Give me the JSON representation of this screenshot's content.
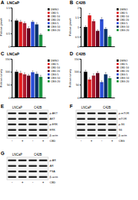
{
  "chart_data": [
    {
      "type": "bar",
      "panel": "A",
      "title": "LNCaP",
      "y_label": "Relative growth",
      "categories": [
        null
      ],
      "tick_labels": "y",
      "series": [
        {
          "name": "DMSO",
          "color": "#000000",
          "values": [
            1.0
          ],
          "errors": [
            0.05
          ]
        },
        {
          "name": "CBD 5",
          "color": "#e41a1c",
          "values": [
            0.95
          ],
          "errors": [
            0.06
          ]
        },
        {
          "name": "CBD 10",
          "color": "#b2182b",
          "values": [
            0.9
          ],
          "errors": [
            0.05
          ]
        },
        {
          "name": "CBD 20",
          "color": "#67001f",
          "values": [
            0.7
          ],
          "errors": [
            0.06
          ]
        },
        {
          "name": "CBG 5",
          "color": "#2c4fd8",
          "values": [
            0.95
          ],
          "errors": [
            0.05
          ]
        },
        {
          "name": "CBG 10",
          "color": "#08306b",
          "values": [
            0.85
          ],
          "errors": [
            0.06
          ]
        },
        {
          "name": "CBG 20",
          "color": "#1a9641",
          "values": [
            0.45
          ],
          "errors": [
            0.04
          ]
        }
      ],
      "ylim": [
        0,
        1.5
      ],
      "yticks": [
        0,
        0.5,
        1,
        1.5
      ]
    },
    {
      "type": "bar",
      "panel": "B",
      "title": "C42B",
      "y_label": "Relative growth",
      "categories": [
        null
      ],
      "tick_labels": "y",
      "series": [
        {
          "name": "DMSO",
          "color": "#000000",
          "values": [
            1.0
          ],
          "errors": [
            0.06
          ]
        },
        {
          "name": "CBD 5",
          "color": "#e41a1c",
          "values": [
            1.6
          ],
          "errors": [
            0.1
          ]
        },
        {
          "name": "CBD 10",
          "color": "#b2182b",
          "values": [
            1.3
          ],
          "errors": [
            0.08
          ]
        },
        {
          "name": "CBD 20",
          "color": "#67001f",
          "values": [
            0.8
          ],
          "errors": [
            0.06
          ]
        },
        {
          "name": "CBG 5",
          "color": "#2c4fd8",
          "values": [
            1.4
          ],
          "errors": [
            0.09
          ]
        },
        {
          "name": "CBG 10",
          "color": "#08306b",
          "values": [
            0.9
          ],
          "errors": [
            0.07
          ]
        },
        {
          "name": "CBG 20",
          "color": "#1a9641",
          "values": [
            0.5
          ],
          "errors": [
            0.05
          ]
        }
      ],
      "ylim": [
        0,
        2
      ],
      "yticks": [
        0,
        0.5,
        1,
        1.5,
        2
      ]
    },
    {
      "type": "bar",
      "panel": "C",
      "title": "LNCaP",
      "y_label": "Relative activity",
      "categories": [
        null
      ],
      "tick_labels": "y",
      "series": [
        {
          "name": "DMSO",
          "color": "#000000",
          "values": [
            100
          ],
          "errors": [
            6
          ]
        },
        {
          "name": "CBD 5",
          "color": "#e41a1c",
          "values": [
            95
          ],
          "errors": [
            7
          ]
        },
        {
          "name": "CBD 10",
          "color": "#b2182b",
          "values": [
            90
          ],
          "errors": [
            6
          ]
        },
        {
          "name": "CBD 20",
          "color": "#67001f",
          "values": [
            85
          ],
          "errors": [
            5
          ]
        },
        {
          "name": "CBG 5",
          "color": "#2c4fd8",
          "values": [
            98
          ],
          "errors": [
            6
          ]
        },
        {
          "name": "CBG 10",
          "color": "#08306b",
          "values": [
            92
          ],
          "errors": [
            7
          ]
        },
        {
          "name": "CBG 20",
          "color": "#1a9641",
          "values": [
            80
          ],
          "errors": [
            6
          ]
        }
      ],
      "ylim": [
        0,
        150
      ],
      "yticks": [
        0,
        50,
        100,
        150
      ]
    },
    {
      "type": "bar",
      "panel": "D",
      "title": "C42B",
      "y_label": "Relative activity",
      "categories": [
        null
      ],
      "tick_labels": "y",
      "series": [
        {
          "name": "DMSO",
          "color": "#000000",
          "values": [
            100
          ],
          "errors": [
            6
          ]
        },
        {
          "name": "CBD 5",
          "color": "#e41a1c",
          "values": [
            70
          ],
          "errors": [
            6
          ]
        },
        {
          "name": "CBD 10",
          "color": "#b2182b",
          "values": [
            85
          ],
          "errors": [
            7
          ]
        },
        {
          "name": "CBD 20",
          "color": "#67001f",
          "values": [
            95
          ],
          "errors": [
            6
          ]
        },
        {
          "name": "CBG 5",
          "color": "#2c4fd8",
          "values": [
            60
          ],
          "errors": [
            5
          ]
        },
        {
          "name": "CBG 10",
          "color": "#08306b",
          "values": [
            90
          ],
          "errors": [
            7
          ]
        },
        {
          "name": "CBG 20",
          "color": "#1a9641",
          "values": [
            75
          ],
          "errors": [
            6
          ]
        }
      ],
      "ylim": [
        0,
        150
      ],
      "yticks": [
        0,
        50,
        100,
        150
      ]
    }
  ],
  "blots": [
    {
      "panel": "E",
      "groups": [
        "LNCaP",
        "C42B"
      ],
      "rows": [
        "p-AKT",
        "AKT",
        "p-ERK",
        "ERK",
        "β-actin"
      ],
      "treatment": "CBD",
      "lanes": [
        "-",
        "+",
        "-",
        "+"
      ]
    },
    {
      "panel": "F",
      "groups": [
        "LNCaP",
        "C42B"
      ],
      "rows": [
        "p-mTOR",
        "mTOR",
        "p-S6",
        "S6",
        "β-actin"
      ],
      "treatment": "CBG",
      "lanes": [
        "-",
        "+",
        "-",
        "+"
      ]
    },
    {
      "panel": "G",
      "groups": [
        "LNCaP",
        "C42B"
      ],
      "rows": [
        "p-AR",
        "AR",
        "PSA",
        "β-actin"
      ],
      "treatment": "CBD",
      "lanes": [
        "-",
        "+",
        "-",
        "+"
      ]
    }
  ]
}
